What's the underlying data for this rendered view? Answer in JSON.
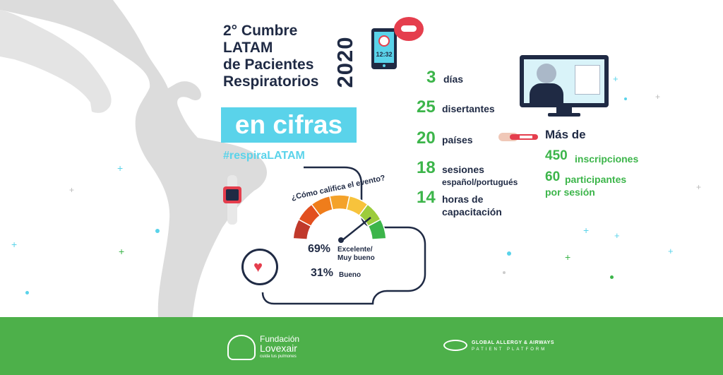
{
  "title_lines": [
    "2° Cumbre",
    "LATAM",
    "de Pacientes",
    "Respiratorios"
  ],
  "year": "2020",
  "subtitle": "en cifras",
  "hashtag": "#respiraLATAM",
  "tablet_clock": "12:32",
  "stats": [
    {
      "value": "3",
      "label": "días"
    },
    {
      "value": "25",
      "label": "disertantes"
    },
    {
      "value": "20",
      "label": "países"
    },
    {
      "value": "18",
      "label": "sesiones",
      "sublabel": "español/portugués"
    },
    {
      "value": "14",
      "label": "horas de",
      "sublabel": "capacitación"
    }
  ],
  "participation": {
    "heading": "Más de",
    "inscriptions_value": "450",
    "inscriptions_label": "inscripciones",
    "participants_value": "60",
    "participants_label": "participantes",
    "participants_sublabel": "por sesión"
  },
  "survey": {
    "question": "¿Cómo califica el evento?",
    "results": [
      {
        "pct": "69%",
        "label_1": "Excelente/",
        "label_2": "Muy bueno"
      },
      {
        "pct": "31%",
        "label_1": "Bueno",
        "label_2": ""
      }
    ],
    "gauge_colors": [
      "#c0392b",
      "#e2501f",
      "#ef7d1b",
      "#f4a22a",
      "#f7c33c",
      "#9ccc3c",
      "#3cb54a"
    ]
  },
  "footer": {
    "left_org_line1": "Fundación",
    "left_org_line2": "Lovexair",
    "left_org_tagline": "cuida tus pulmones",
    "right_org_line1": "GLOBAL ALLERGY & AIRWAYS",
    "right_org_line2": "PATIENT PLATFORM"
  },
  "colors": {
    "navy": "#1f2a44",
    "green": "#3cb54a",
    "cyan": "#5ad3ea",
    "map_gray": "#dcdcdc",
    "footer_green": "#4db04a"
  }
}
